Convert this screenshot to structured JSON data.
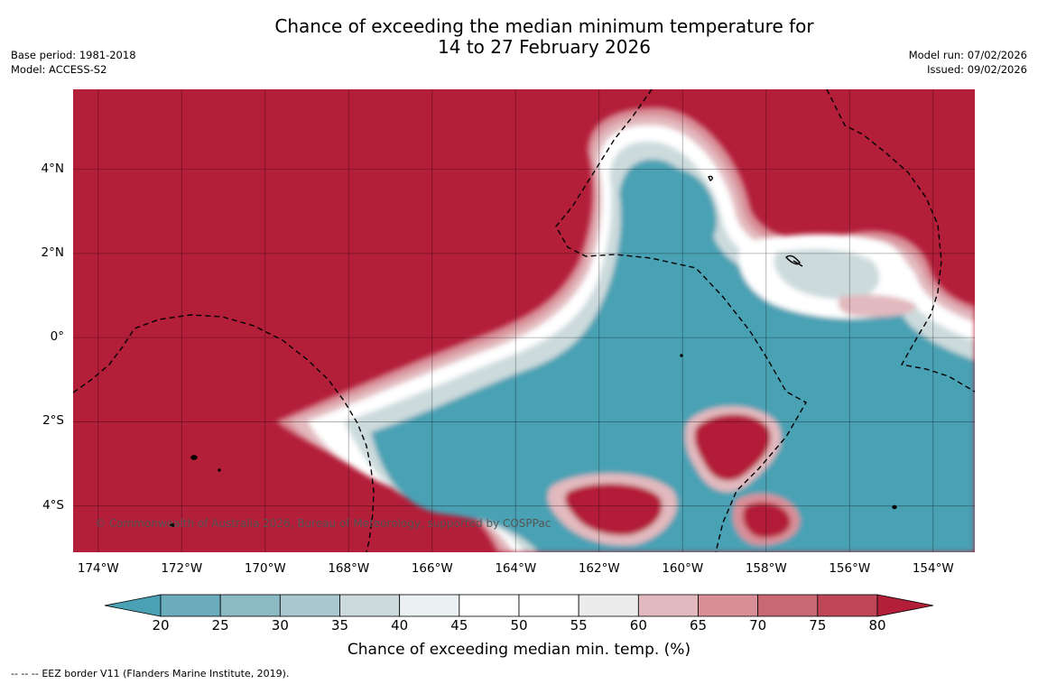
{
  "header": {
    "title_line1": "Chance of exceeding the median minimum temperature for",
    "title_line2": "14 to 27 February 2026",
    "base_period": "Base period: 1981-2018",
    "model": "Model: ACCESS-S2",
    "model_run": "Model run: 07/02/2026",
    "issued": "Issued: 09/02/2026"
  },
  "map": {
    "copyright": "© Commonwealth of Australia 2026, Bureau of Meteorology, supported by COSPPac",
    "lat_labels": [
      "4°N",
      "2°N",
      "0°",
      "2°S",
      "4°S"
    ],
    "lon_labels": [
      "174°W",
      "172°W",
      "170°W",
      "168°W",
      "166°W",
      "164°W",
      "162°W",
      "160°W",
      "158°W",
      "156°W",
      "154°W"
    ],
    "lat_values": [
      4,
      2,
      0,
      -2,
      -4
    ],
    "lon_values": [
      -174,
      -172,
      -170,
      -168,
      -166,
      -164,
      -162,
      -160,
      -158,
      -156,
      -154
    ],
    "extent": {
      "lon_min": -174.6,
      "lon_max": -153.0,
      "lat_min": -5.1,
      "lat_max": 5.9
    },
    "grid": true
  },
  "colorbar": {
    "title": "Chance of exceeding median min. temp. (%)",
    "ticks": [
      "20",
      "25",
      "30",
      "35",
      "40",
      "45",
      "50",
      "55",
      "60",
      "65",
      "70",
      "75",
      "80"
    ],
    "colors": [
      "#4aa1b4",
      "#6aacbc",
      "#8bbac5",
      "#aac7cd",
      "#ccdadc",
      "#ebf1f2",
      "#ffffff",
      "#ffffff",
      "#ececed",
      "#e2b9be",
      "#d88f98",
      "#c96873",
      "#bf4656",
      "#b31e39"
    ],
    "extend_low_color": "#4aa1b4",
    "extend_high_color": "#b31e39"
  },
  "footer": {
    "legend_symbol": "--  --  --",
    "legend_text": "EEZ border V11 (Flanders Marine Institute, 2019)."
  }
}
